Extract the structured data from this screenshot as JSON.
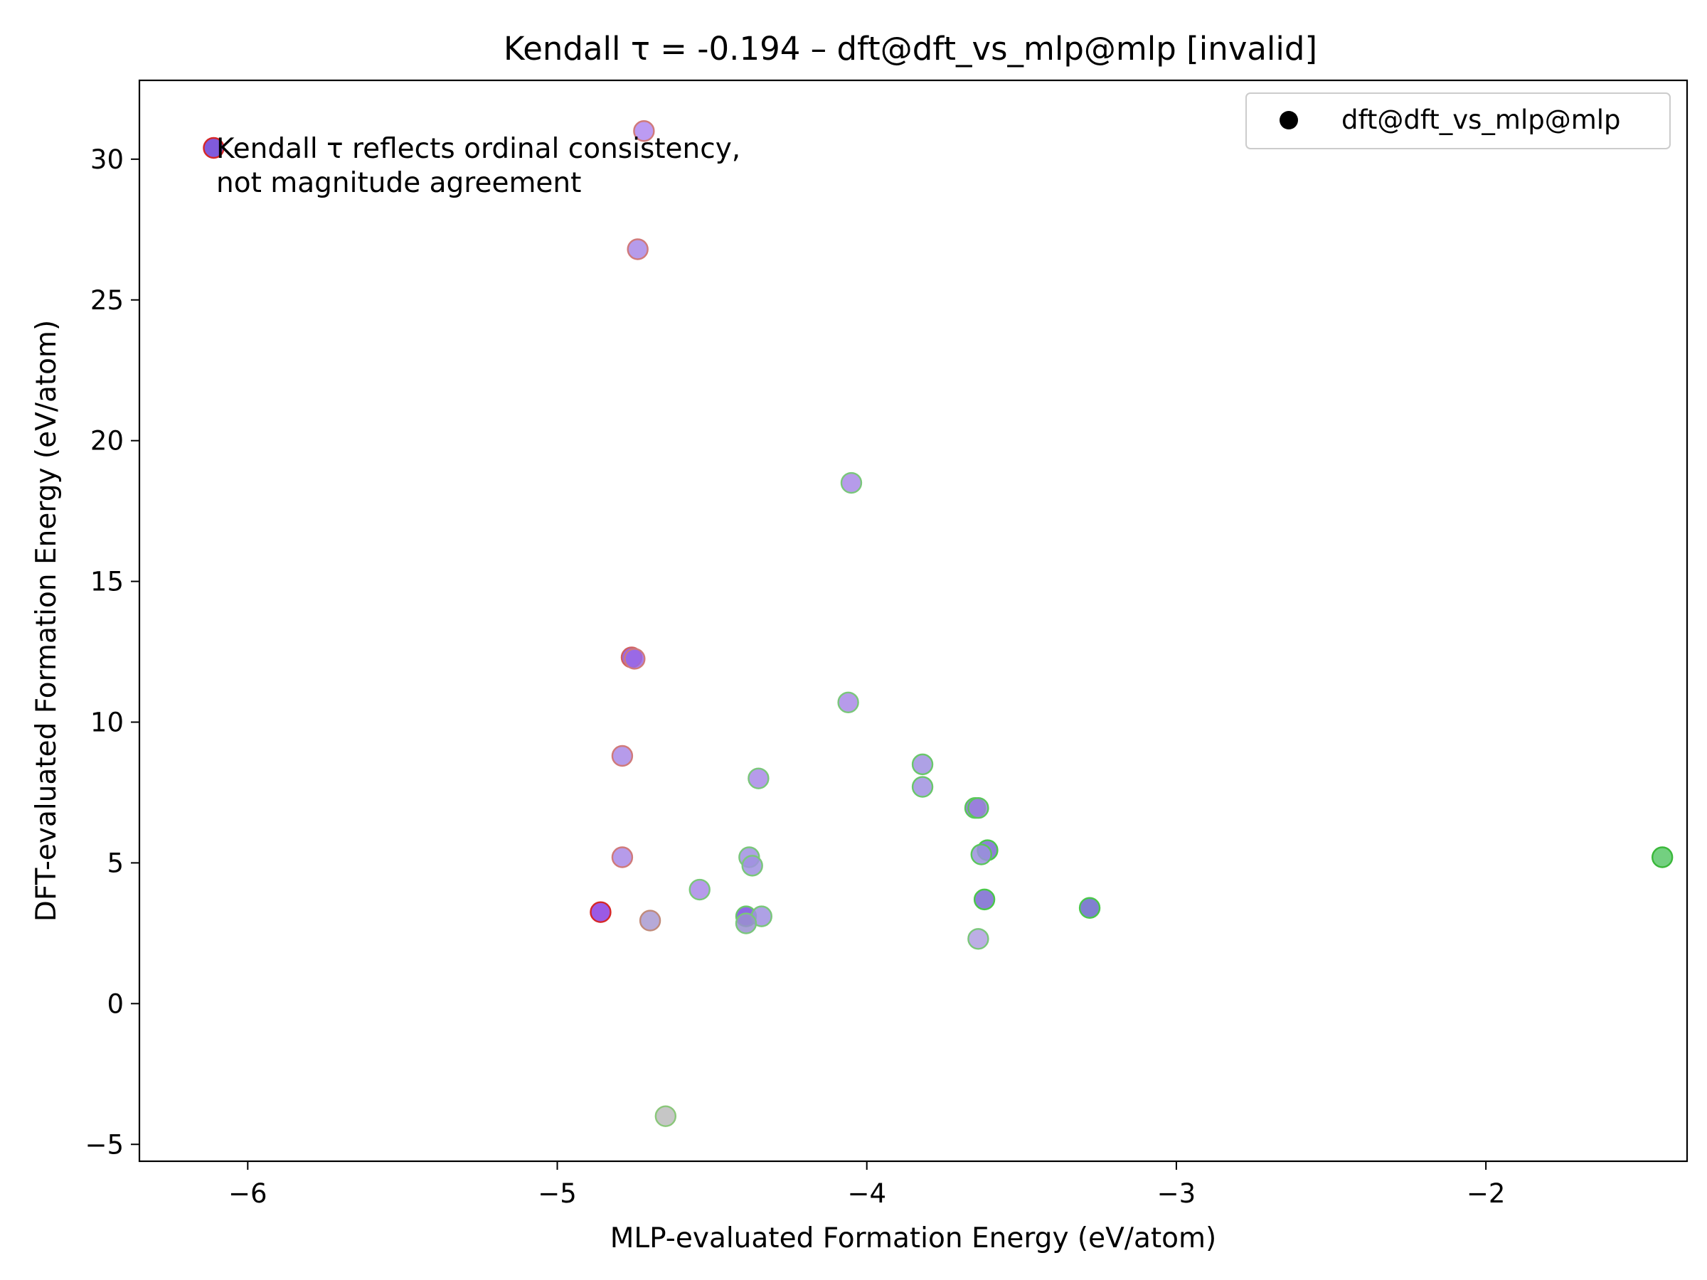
{
  "chart_data": {
    "type": "scatter",
    "title": "Kendall τ = -0.194 – dft@dft_vs_mlp@mlp [invalid]",
    "xlabel": "MLP-evaluated Formation Energy (eV/atom)",
    "ylabel": "DFT-evaluated Formation Energy (eV/atom)",
    "xlim": [
      -6.35,
      -1.35
    ],
    "ylim": [
      -5.6,
      32.8
    ],
    "xticks": [
      -6,
      -5,
      -4,
      -3,
      -2
    ],
    "xtick_labels": [
      "−6",
      "−5",
      "−4",
      "−3",
      "−2"
    ],
    "yticks": [
      -5,
      0,
      5,
      10,
      15,
      20,
      25,
      30
    ],
    "ytick_labels": [
      "−5",
      "0",
      "5",
      "10",
      "15",
      "20",
      "25",
      "30"
    ],
    "grid": false,
    "legend": {
      "position": "top-right",
      "entries": [
        "dft@dft_vs_mlp@mlp"
      ]
    },
    "annotation": [
      "Kendall τ reflects ordinal consistency,",
      "not magnitude agreement"
    ],
    "series": [
      {
        "name": "dft@dft_vs_mlp@mlp",
        "marker_fill": "#8a5ce6",
        "points": [
          {
            "x": -6.11,
            "y": 30.4,
            "edge": "#d62728",
            "fill": "#6a3dd6"
          },
          {
            "x": -4.72,
            "y": 31.0,
            "edge": "#d07a7a",
            "fill": "#b08af0"
          },
          {
            "x": -4.74,
            "y": 26.8,
            "edge": "#d07a7a",
            "fill": "#a98ae6"
          },
          {
            "x": -4.05,
            "y": 18.5,
            "edge": "#7ac77a",
            "fill": "#a98ae6"
          },
          {
            "x": -4.76,
            "y": 12.3,
            "edge": "#d06060",
            "fill": "#8a4de0"
          },
          {
            "x": -4.75,
            "y": 12.25,
            "edge": "#d07a7a",
            "fill": "#9a6ae6"
          },
          {
            "x": -4.06,
            "y": 10.7,
            "edge": "#7ac77a",
            "fill": "#a98ae6"
          },
          {
            "x": -4.79,
            "y": 8.8,
            "edge": "#d07a7a",
            "fill": "#a98ae6"
          },
          {
            "x": -4.35,
            "y": 8.0,
            "edge": "#7ac77a",
            "fill": "#a98ae6"
          },
          {
            "x": -3.82,
            "y": 8.5,
            "edge": "#6ac76a",
            "fill": "#a090e0"
          },
          {
            "x": -3.82,
            "y": 7.7,
            "edge": "#6ac76a",
            "fill": "#a090e0"
          },
          {
            "x": -3.65,
            "y": 6.95,
            "edge": "#5ac75a",
            "fill": "#8a6ad6"
          },
          {
            "x": -3.64,
            "y": 6.95,
            "edge": "#5ac75a",
            "fill": "#9a80dc"
          },
          {
            "x": -4.79,
            "y": 5.2,
            "edge": "#d07a7a",
            "fill": "#a98ae6"
          },
          {
            "x": -4.38,
            "y": 5.2,
            "edge": "#7ac77a",
            "fill": "#a090e0"
          },
          {
            "x": -4.37,
            "y": 4.9,
            "edge": "#7ac77a",
            "fill": "#a090e0"
          },
          {
            "x": -3.61,
            "y": 5.45,
            "edge": "#4ac74a",
            "fill": "#7a6ad0"
          },
          {
            "x": -3.63,
            "y": 5.3,
            "edge": "#5ac75a",
            "fill": "#9a90dc"
          },
          {
            "x": -4.54,
            "y": 4.05,
            "edge": "#7ac77a",
            "fill": "#a98ae6"
          },
          {
            "x": -3.62,
            "y": 3.7,
            "edge": "#4ac74a",
            "fill": "#7a6ad0"
          },
          {
            "x": -3.28,
            "y": 3.4,
            "edge": "#4ac74a",
            "fill": "#6a6ac8"
          },
          {
            "x": -4.86,
            "y": 3.25,
            "edge": "#d62728",
            "fill": "#8a3de0"
          },
          {
            "x": -4.39,
            "y": 3.1,
            "edge": "#6ac76a",
            "fill": "#7a4de0"
          },
          {
            "x": -4.34,
            "y": 3.1,
            "edge": "#7ac77a",
            "fill": "#a090e0"
          },
          {
            "x": -4.39,
            "y": 2.85,
            "edge": "#7ac77a",
            "fill": "#9a90d0"
          },
          {
            "x": -4.7,
            "y": 2.95,
            "edge": "#c08a7a",
            "fill": "#a99ad0"
          },
          {
            "x": -3.64,
            "y": 2.3,
            "edge": "#7ac77a",
            "fill": "#b0a0e0"
          },
          {
            "x": -1.43,
            "y": 5.2,
            "edge": "#3ab83a",
            "fill": "#5ac86a"
          },
          {
            "x": -4.65,
            "y": -4.0,
            "edge": "#8ac77a",
            "fill": "#bcbcbc"
          }
        ]
      }
    ]
  }
}
